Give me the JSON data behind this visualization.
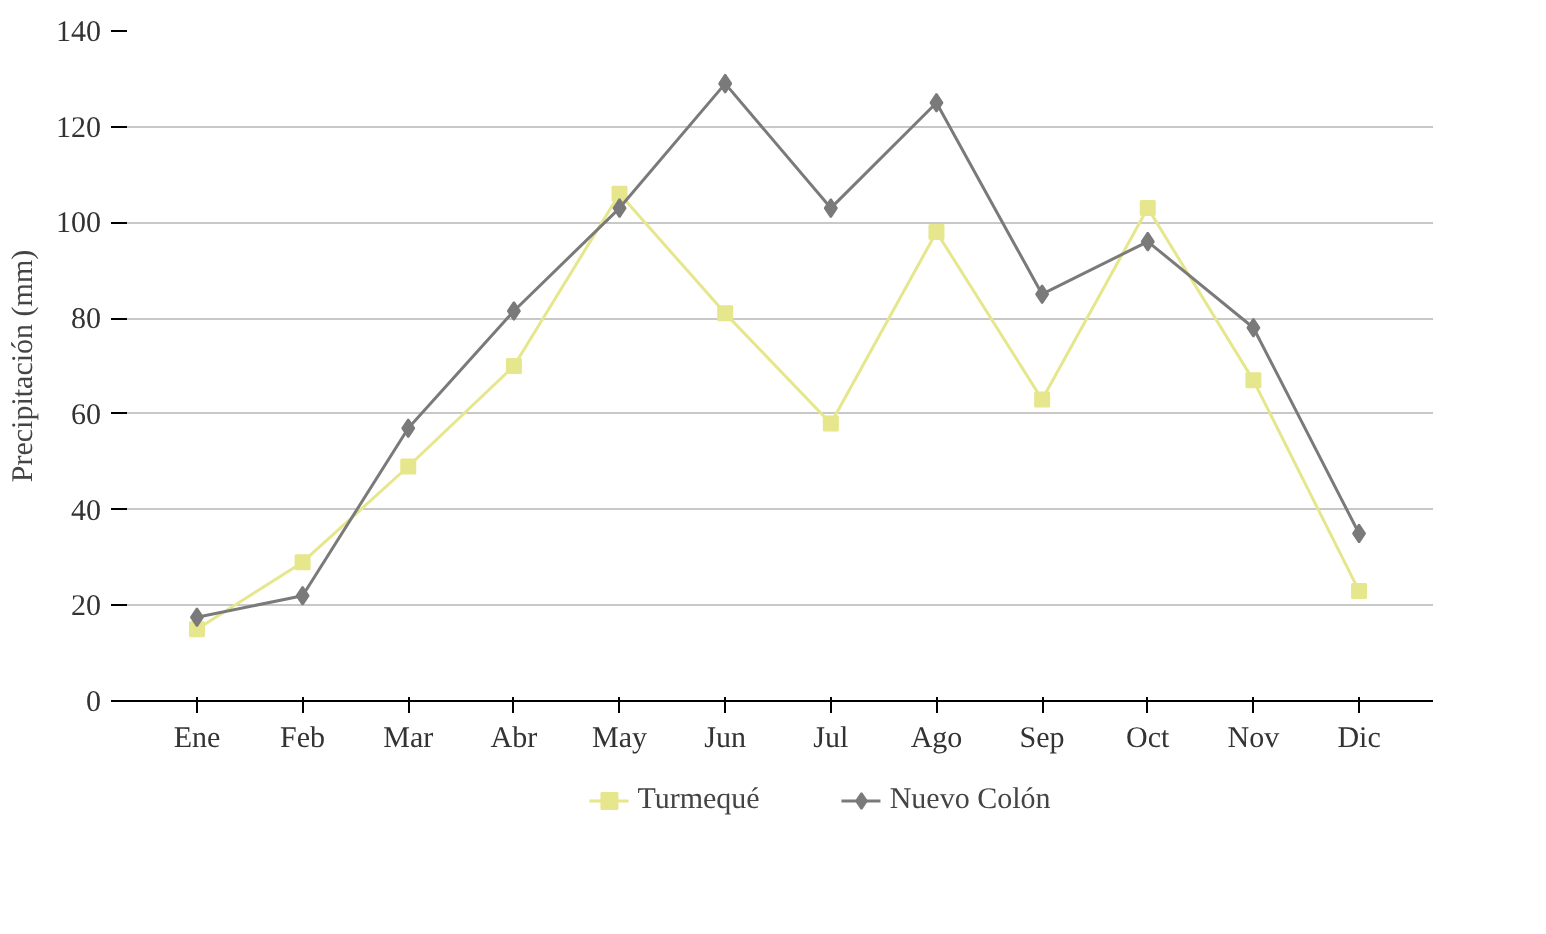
{
  "chart_data": {
    "type": "line",
    "ylabel": "Precipitación (mm)",
    "categories": [
      "Ene",
      "Feb",
      "Mar",
      "Abr",
      "May",
      "Jun",
      "Jul",
      "Ago",
      "Sep",
      "Oct",
      "Nov",
      "Dic"
    ],
    "series": [
      {
        "name": "Turmequé",
        "color": "#e6e68c",
        "marker": "square",
        "values": [
          15,
          29,
          49,
          70,
          106,
          81,
          58,
          98,
          63,
          103,
          67,
          23
        ]
      },
      {
        "name": "Nuevo Colón",
        "color": "#7a7a7a",
        "marker": "diamond",
        "values": [
          17.5,
          22,
          57,
          81.5,
          103,
          129,
          103,
          125,
          85,
          96,
          78,
          35
        ]
      }
    ],
    "ylim": [
      0,
      140
    ],
    "yticks": [
      0,
      20,
      40,
      60,
      80,
      100,
      120,
      140
    ],
    "grid": "y",
    "legend": "bottom",
    "line_style": "solid"
  }
}
